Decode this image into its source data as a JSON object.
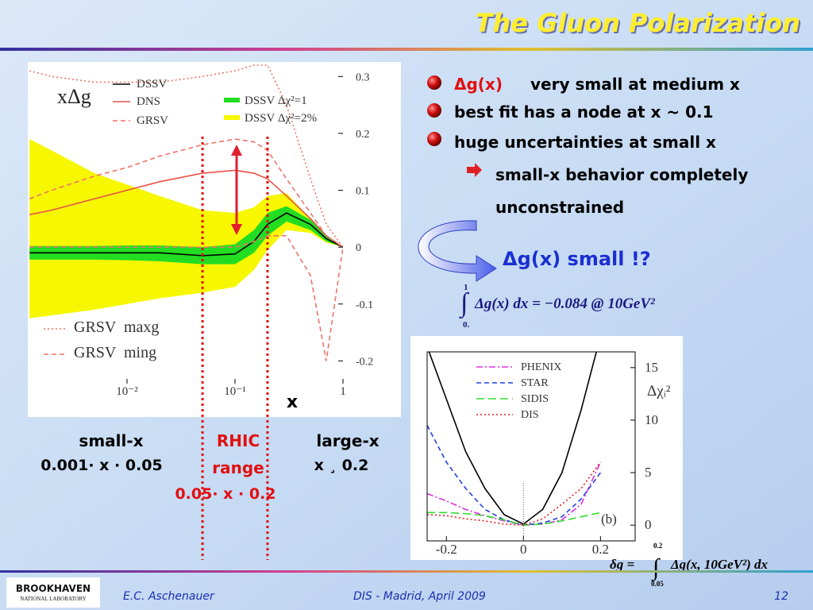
{
  "title": "The Gluon Polarization",
  "bullets": [
    {
      "lead": "Δg(x)",
      "text": "very small at medium x"
    },
    {
      "text": "best fit has a node at x ~ 0.1"
    },
    {
      "text": "huge uncertainties at small x"
    }
  ],
  "sub_bullet": [
    "small-x behavior completely",
    "unconstrained"
  ],
  "conclusion": "Δg(x) small !?",
  "integral": {
    "upper": "1",
    "lower": "0.",
    "expression": "Δg(x) dx = −0.084 @ 10GeV²"
  },
  "delta_g": {
    "lhs": "δg =",
    "upper": "0.2",
    "lower": "0.05",
    "expression": "Δg(x, 10GeV²) dx"
  },
  "regions": [
    {
      "label": [
        "small-x"
      ],
      "range": "0.001· x · 0.05"
    },
    {
      "label": [
        "RHIC",
        "range"
      ],
      "range": "0.05· x · 0.2"
    },
    {
      "label": [
        "large-x"
      ],
      "range": "x ¸ 0.2"
    }
  ],
  "footer": {
    "logo": "BROOKHAVEN",
    "logo_sub": "NATIONAL LABORATORY",
    "author": "E.C. Aschenauer",
    "event": "DIS - Madrid, April 2009",
    "page": "12"
  },
  "chart_data": [
    {
      "type": "line",
      "annotation": "xΔg",
      "x_label": "x",
      "xlog": true,
      "xlim": [
        0.00125,
        1
      ],
      "xticks": [
        {
          "value": 0.01,
          "label": "10⁻²"
        },
        {
          "value": 0.1,
          "label": "10⁻¹"
        },
        1
      ],
      "ylim": [
        -0.24,
        0.32
      ],
      "yticks": [
        0.3,
        0.2,
        0.1,
        0,
        -0.1,
        -0.2
      ],
      "xmarkers": [
        0.05,
        0.2
      ],
      "x": [
        0.00125,
        0.002,
        0.005,
        0.01,
        0.02,
        0.05,
        0.1,
        0.15,
        0.2,
        0.3,
        0.5,
        0.7,
        1
      ],
      "bands": [
        {
          "name": "DSSV Δχ²=2%",
          "color": "#f7f700",
          "upper": [
            0.19,
            0.17,
            0.13,
            0.11,
            0.09,
            0.065,
            0.06,
            0.07,
            0.09,
            0.095,
            0.05,
            0.015,
            0
          ],
          "lower": [
            -0.125,
            -0.12,
            -0.11,
            -0.1,
            -0.09,
            -0.08,
            -0.07,
            -0.04,
            -0.005,
            0.03,
            0.025,
            0.008,
            0
          ]
        },
        {
          "name": "DSSV Δχ²=1",
          "color": "#22dd22",
          "upper": [
            0.002,
            0.002,
            0.002,
            0.003,
            0.003,
            0,
            0.005,
            0.03,
            0.06,
            0.072,
            0.048,
            0.02,
            0
          ],
          "lower": [
            -0.022,
            -0.022,
            -0.022,
            -0.023,
            -0.025,
            -0.03,
            -0.03,
            -0.01,
            0.02,
            0.045,
            0.03,
            0.01,
            0
          ]
        }
      ],
      "series": [
        {
          "name": "DSSV",
          "color": "#000000",
          "dash": "solid",
          "values": [
            -0.01,
            -0.01,
            -0.01,
            -0.01,
            -0.01,
            -0.015,
            -0.012,
            0.01,
            0.04,
            0.06,
            0.04,
            0.015,
            0
          ]
        },
        {
          "name": "DNS",
          "color": "#e8524a",
          "dash": "solid",
          "values": [
            0.057,
            0.065,
            0.085,
            0.1,
            0.115,
            0.13,
            0.135,
            0.13,
            0.12,
            0.09,
            0.05,
            0.02,
            0
          ]
        },
        {
          "name": "GRSV",
          "color": "#ee7468",
          "dash": "dashed",
          "values": [
            0.085,
            0.1,
            0.125,
            0.14,
            0.16,
            0.18,
            0.19,
            0.185,
            0.17,
            0.12,
            0.06,
            0.02,
            0
          ]
        },
        {
          "name": "GRSV  maxg",
          "color": "#ee7468",
          "dash": "dotted",
          "values": [
            0.31,
            0.3,
            0.29,
            0.29,
            0.29,
            0.3,
            0.31,
            0.32,
            0.32,
            0.25,
            0.12,
            0.04,
            0
          ]
        },
        {
          "name": "GRSV  ming",
          "color": "#ee7468",
          "dash": "dashed",
          "values": [
            0,
            0,
            0,
            0,
            0,
            0,
            0,
            0.01,
            0.02,
            0.02,
            -0.05,
            -0.2,
            0
          ]
        }
      ]
    },
    {
      "type": "line",
      "annotation": "(b)",
      "y_label": "Δχᵢ²",
      "xlog": false,
      "xlim": [
        -0.25,
        0.29
      ],
      "xticks": [
        -0.2,
        0,
        0.2
      ],
      "ylim": [
        -1.5,
        16.5
      ],
      "yticks": [
        15,
        10,
        5,
        0
      ],
      "x": [
        -0.25,
        -0.2,
        -0.15,
        -0.1,
        -0.05,
        0,
        0.05,
        0.1,
        0.15,
        0.2
      ],
      "series": [
        {
          "color": "#000000",
          "dash": "solid",
          "values": [
            17,
            12,
            7,
            3.5,
            1,
            0.1,
            1.5,
            5,
            11,
            18
          ]
        },
        {
          "name": "PHENIX",
          "color": "#e030e0",
          "dash": "dashdot",
          "values": [
            3,
            2.3,
            1.5,
            0.9,
            0.4,
            0,
            0.1,
            0.5,
            2,
            6
          ]
        },
        {
          "name": "STAR",
          "color": "#2040e0",
          "dash": "dashed",
          "values": [
            9.5,
            6,
            3.5,
            1.5,
            0.5,
            0,
            0.2,
            0.8,
            2.5,
            5
          ]
        },
        {
          "name": "SIDIS",
          "color": "#30dd30",
          "dash": "longdash",
          "values": [
            1.2,
            1.2,
            1.1,
            0.9,
            0.5,
            0,
            0.1,
            0.4,
            0.8,
            1.2
          ]
        },
        {
          "name": "DIS",
          "color": "#e02020",
          "dash": "dotted",
          "values": [
            1,
            0.9,
            0.6,
            0.4,
            0.1,
            0,
            0.6,
            2,
            3.5,
            6
          ]
        }
      ]
    }
  ]
}
